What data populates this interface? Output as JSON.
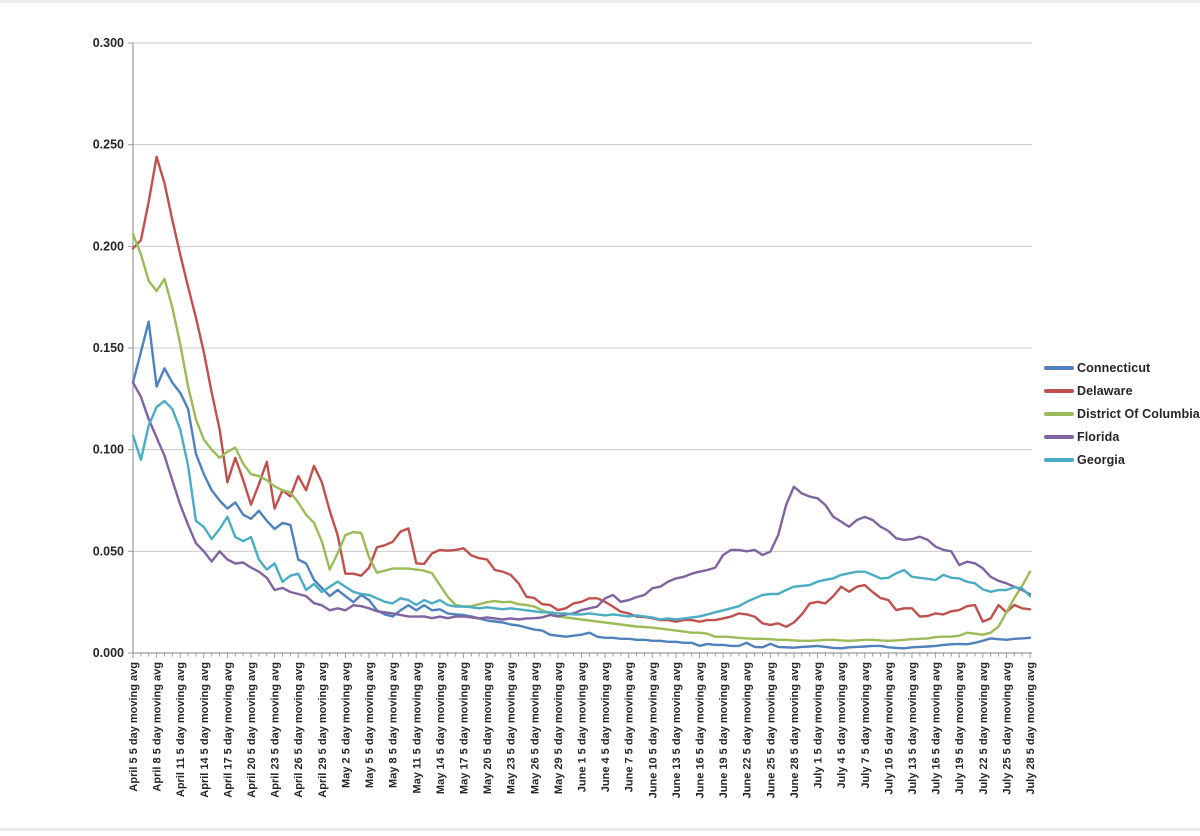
{
  "chart_data": {
    "type": "line",
    "title": "",
    "grid": true,
    "legend_position": "right",
    "x_axis": {
      "points": 115,
      "label_every_n_points": 3,
      "tick_label_suffix": " 5 day moving avg",
      "labels": [
        "April 5",
        "April 8",
        "April 11",
        "April 14",
        "April 17",
        "April 20",
        "April 23",
        "April 26",
        "April 29",
        "May 2",
        "May 5",
        "May 8",
        "May 11",
        "May 14",
        "May 17",
        "May 20",
        "May 23",
        "May 26",
        "May 29",
        "June 1",
        "June 4",
        "June 7",
        "June 10",
        "June 13",
        "June 16",
        "June 19",
        "June 22",
        "June 25",
        "June 28",
        "July 1",
        "July 4",
        "July 7",
        "July 10",
        "July 13",
        "July 16",
        "July 19",
        "July 22",
        "July 25",
        "July 28"
      ]
    },
    "y_axis": {
      "min": 0,
      "max": 0.3,
      "step": 0.05,
      "decimals": 3,
      "tick_labels": [
        "0.000",
        "0.050",
        "0.100",
        "0.150",
        "0.200",
        "0.250",
        "0.300"
      ]
    },
    "series": [
      {
        "name": "Connecticut",
        "color": "#4F81BD",
        "values": [
          0.133,
          0.148,
          0.163,
          0.131,
          0.14,
          0.133,
          0.128,
          0.12,
          0.098,
          0.088,
          0.08,
          0.075,
          0.071,
          0.074,
          0.068,
          0.066,
          0.07,
          0.065,
          0.061,
          0.064,
          0.063,
          0.046,
          0.044,
          0.036,
          0.032,
          0.028,
          0.031,
          0.028,
          0.025,
          0.0285,
          0.026,
          0.021,
          0.019,
          0.018,
          0.021,
          0.0235,
          0.021,
          0.0235,
          0.021,
          0.0215,
          0.0195,
          0.019,
          0.0187,
          0.018,
          0.017,
          0.016,
          0.0155,
          0.015,
          0.014,
          0.0135,
          0.0125,
          0.0115,
          0.011,
          0.009,
          0.0085,
          0.008,
          0.0085,
          0.009,
          0.01,
          0.008,
          0.0075,
          0.0075,
          0.007,
          0.007,
          0.0065,
          0.0065,
          0.006,
          0.006,
          0.0055,
          0.0055,
          0.005,
          0.005,
          0.0035,
          0.0045,
          0.004,
          0.004,
          0.0035,
          0.0035,
          0.005,
          0.003,
          0.0028,
          0.0045,
          0.003,
          0.0028,
          0.0026,
          0.003,
          0.0032,
          0.0035,
          0.003,
          0.0025,
          0.0023,
          0.0028,
          0.003,
          0.0032,
          0.0035,
          0.0035,
          0.0028,
          0.0025,
          0.0023,
          0.0028,
          0.003,
          0.0032,
          0.0035,
          0.004,
          0.0043,
          0.0045,
          0.0043,
          0.005,
          0.006,
          0.0072,
          0.0068,
          0.0065,
          0.007,
          0.0072,
          0.0075
        ]
      },
      {
        "name": "Delaware",
        "color": "#C0504D",
        "values": [
          0.199,
          0.203,
          0.222,
          0.244,
          0.231,
          0.213,
          0.196,
          0.18,
          0.165,
          0.148,
          0.128,
          0.11,
          0.084,
          0.096,
          0.085,
          0.073,
          0.083,
          0.094,
          0.071,
          0.08,
          0.077,
          0.087,
          0.08,
          0.092,
          0.084,
          0.07,
          0.058,
          0.039,
          0.039,
          0.038,
          0.042,
          0.052,
          0.053,
          0.0547,
          0.0597,
          0.0613,
          0.0441,
          0.0438,
          0.049,
          0.0507,
          0.0503,
          0.0507,
          0.0515,
          0.048,
          0.0466,
          0.046,
          0.0408,
          0.04,
          0.0384,
          0.0343,
          0.0277,
          0.027,
          0.024,
          0.0236,
          0.0211,
          0.022,
          0.0244,
          0.0252,
          0.0269,
          0.0269,
          0.0252,
          0.0228,
          0.0203,
          0.0195,
          0.0179,
          0.0177,
          0.0171,
          0.0162,
          0.0162,
          0.0154,
          0.0162,
          0.0162,
          0.0154,
          0.0162,
          0.0162,
          0.017,
          0.0179,
          0.0195,
          0.019,
          0.0179,
          0.0146,
          0.0138,
          0.0146,
          0.0129,
          0.015,
          0.019,
          0.0244,
          0.0252,
          0.0244,
          0.028,
          0.0326,
          0.0301,
          0.0326,
          0.0334,
          0.03,
          0.027,
          0.026,
          0.0211,
          0.022,
          0.022,
          0.0179,
          0.0182,
          0.0195,
          0.019,
          0.0205,
          0.0211,
          0.023,
          0.0236,
          0.0154,
          0.017,
          0.0236,
          0.02,
          0.0236,
          0.022,
          0.0215
        ]
      },
      {
        "name": "District Of Columbia",
        "color": "#9BBB59",
        "values": [
          0.206,
          0.196,
          0.183,
          0.178,
          0.184,
          0.17,
          0.152,
          0.131,
          0.115,
          0.105,
          0.1,
          0.096,
          0.099,
          0.101,
          0.093,
          0.088,
          0.087,
          0.085,
          0.082,
          0.08,
          0.079,
          0.074,
          0.068,
          0.064,
          0.055,
          0.041,
          0.049,
          0.058,
          0.0595,
          0.059,
          0.047,
          0.0395,
          0.0405,
          0.0415,
          0.0415,
          0.0415,
          0.041,
          0.0405,
          0.0392,
          0.0334,
          0.0277,
          0.0236,
          0.0228,
          0.023,
          0.024,
          0.025,
          0.0255,
          0.025,
          0.0252,
          0.024,
          0.0236,
          0.0228,
          0.021,
          0.0195,
          0.018,
          0.0175,
          0.017,
          0.0165,
          0.016,
          0.0155,
          0.015,
          0.0145,
          0.014,
          0.0135,
          0.013,
          0.0128,
          0.0125,
          0.012,
          0.0115,
          0.011,
          0.0105,
          0.01,
          0.01,
          0.0095,
          0.008,
          0.008,
          0.0078,
          0.0075,
          0.0072,
          0.007,
          0.007,
          0.0068,
          0.0065,
          0.0065,
          0.0062,
          0.006,
          0.006,
          0.0062,
          0.0065,
          0.0065,
          0.0062,
          0.006,
          0.0062,
          0.0065,
          0.0065,
          0.0062,
          0.006,
          0.0062,
          0.0065,
          0.0068,
          0.007,
          0.0072,
          0.0078,
          0.008,
          0.008,
          0.0085,
          0.01,
          0.0095,
          0.009,
          0.01,
          0.013,
          0.02,
          0.027,
          0.033,
          0.04
        ]
      },
      {
        "name": "Florida",
        "color": "#8064A2",
        "values": [
          0.133,
          0.126,
          0.115,
          0.106,
          0.097,
          0.085,
          0.073,
          0.063,
          0.054,
          0.05,
          0.045,
          0.05,
          0.046,
          0.044,
          0.0445,
          0.042,
          0.04,
          0.037,
          0.031,
          0.032,
          0.03,
          0.029,
          0.028,
          0.0245,
          0.0235,
          0.021,
          0.022,
          0.021,
          0.0235,
          0.023,
          0.022,
          0.0205,
          0.02,
          0.0195,
          0.0187,
          0.018,
          0.0179,
          0.018,
          0.0171,
          0.0179,
          0.0171,
          0.0179,
          0.018,
          0.0175,
          0.017,
          0.0175,
          0.017,
          0.0165,
          0.017,
          0.0165,
          0.017,
          0.0171,
          0.0175,
          0.0187,
          0.018,
          0.019,
          0.0195,
          0.0211,
          0.022,
          0.0228,
          0.0269,
          0.0285,
          0.0252,
          0.026,
          0.0275,
          0.0285,
          0.0318,
          0.0326,
          0.0351,
          0.0367,
          0.0375,
          0.039,
          0.04,
          0.0408,
          0.042,
          0.0482,
          0.0507,
          0.0507,
          0.05,
          0.0507,
          0.0482,
          0.0498,
          0.058,
          0.0728,
          0.0818,
          0.0785,
          0.0769,
          0.0761,
          0.0728,
          0.067,
          0.0646,
          0.0621,
          0.0654,
          0.067,
          0.0654,
          0.0621,
          0.06,
          0.0564,
          0.0556,
          0.056,
          0.0572,
          0.0556,
          0.0523,
          0.0507,
          0.05,
          0.0433,
          0.0449,
          0.0441,
          0.0416,
          0.0375,
          0.0355,
          0.0343,
          0.0326,
          0.031,
          0.0289
        ]
      },
      {
        "name": "Georgia",
        "color": "#4BACC6",
        "values": [
          0.107,
          0.095,
          0.112,
          0.121,
          0.124,
          0.12,
          0.11,
          0.092,
          0.065,
          0.062,
          0.056,
          0.061,
          0.067,
          0.057,
          0.055,
          0.057,
          0.046,
          0.041,
          0.044,
          0.035,
          0.038,
          0.039,
          0.031,
          0.034,
          0.03,
          0.0326,
          0.0351,
          0.0326,
          0.0301,
          0.029,
          0.0285,
          0.0269,
          0.0252,
          0.0244,
          0.0269,
          0.026,
          0.0236,
          0.026,
          0.0244,
          0.026,
          0.0236,
          0.0228,
          0.0228,
          0.0225,
          0.022,
          0.0225,
          0.022,
          0.0215,
          0.022,
          0.0215,
          0.021,
          0.0205,
          0.02,
          0.02,
          0.0195,
          0.0195,
          0.019,
          0.019,
          0.0195,
          0.019,
          0.0185,
          0.019,
          0.0185,
          0.018,
          0.0185,
          0.018,
          0.0175,
          0.0165,
          0.017,
          0.0165,
          0.017,
          0.0175,
          0.018,
          0.019,
          0.02,
          0.021,
          0.022,
          0.023,
          0.0252,
          0.0269,
          0.0285,
          0.029,
          0.029,
          0.031,
          0.0326,
          0.033,
          0.0334,
          0.0351,
          0.036,
          0.0367,
          0.0384,
          0.0392,
          0.04,
          0.04,
          0.0384,
          0.0367,
          0.037,
          0.0392,
          0.0408,
          0.0375,
          0.037,
          0.0365,
          0.0359,
          0.0384,
          0.037,
          0.0367,
          0.035,
          0.0343,
          0.0313,
          0.0301,
          0.031,
          0.031,
          0.0323,
          0.0318,
          0.028
        ]
      }
    ]
  },
  "layout_colors": {
    "background": "#FFFFFF",
    "gridline": "#C9C9C9",
    "axis": "#9B9B9B",
    "tick": "#9B9B9B",
    "label": "#262626"
  }
}
